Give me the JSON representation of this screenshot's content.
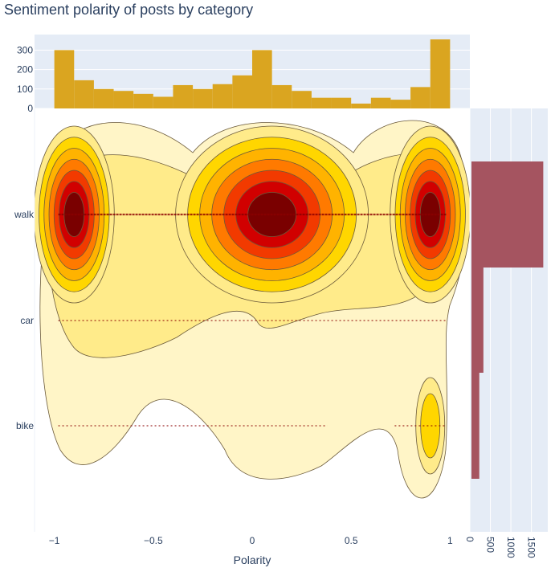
{
  "chart_data": {
    "type": "density-contour with marginal histograms",
    "title": "Sentiment polarity of posts by category",
    "xlabel": "Polarity",
    "ylabel": "",
    "xlim": [
      -1.1,
      1.1
    ],
    "x_ticks": [
      {
        "value": -1,
        "label": "−1"
      },
      {
        "value": -0.5,
        "label": "−0.5"
      },
      {
        "value": 0,
        "label": "0"
      },
      {
        "value": 0.5,
        "label": "0.5"
      },
      {
        "value": 1,
        "label": "1"
      }
    ],
    "categories": [
      "walk",
      "car",
      "bike"
    ],
    "colors": {
      "top_histogram": "#daa520",
      "right_histogram": "#a55460",
      "marginal_background": "#e5ecf6",
      "points": "#8b0000",
      "contour_line": "#6b5a3a",
      "contour_scale": [
        "#fff5c7",
        "#ffeb8a",
        "#ffd600",
        "#ffb300",
        "#ff7a00",
        "#f23a00",
        "#d10000",
        "#7a0000"
      ]
    },
    "top_histogram": {
      "bin_width": 0.1,
      "bin_starts": [
        -1.0,
        -0.9,
        -0.8,
        -0.7,
        -0.6,
        -0.5,
        -0.4,
        -0.3,
        -0.2,
        -0.1,
        0.0,
        0.1,
        0.2,
        0.3,
        0.4,
        0.5,
        0.6,
        0.7,
        0.8,
        0.9
      ],
      "counts": [
        300,
        145,
        100,
        90,
        75,
        60,
        120,
        100,
        125,
        170,
        300,
        120,
        90,
        55,
        55,
        25,
        55,
        45,
        110,
        355
      ],
      "ylim": [
        0,
        380
      ],
      "y_ticks": [
        0,
        100,
        200,
        300
      ]
    },
    "right_histogram": {
      "bars": [
        {
          "category": "walk",
          "count": 1790
        },
        {
          "category": "car",
          "count": 330
        },
        {
          "category": "bike",
          "count": 230
        }
      ],
      "xlim": [
        0,
        1900
      ],
      "x_ticks": [
        0,
        500,
        1000,
        1500
      ]
    },
    "density_peaks": [
      {
        "category": "walk",
        "x": -0.9
      },
      {
        "category": "walk",
        "x": 0.1
      },
      {
        "category": "walk",
        "x": 0.9
      },
      {
        "category": "bike",
        "x": 0.9
      }
    ]
  }
}
